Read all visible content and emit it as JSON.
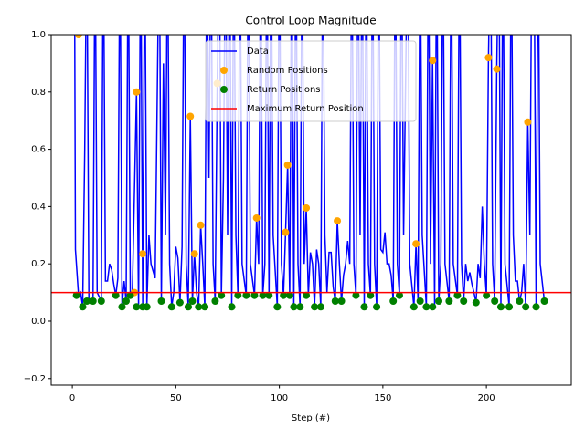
{
  "chart_data": {
    "type": "line",
    "title": "Control Loop Magnitude",
    "x_label": "Step (#)",
    "xlim": [
      -10.2,
      241
    ],
    "ylim": [
      -0.223,
      1.0
    ],
    "xticks": [
      0,
      50,
      100,
      150,
      200
    ],
    "yticks": [
      {
        "value": -0.2,
        "label": "−0.2"
      },
      {
        "value": 0,
        "label": "0.0"
      },
      0.2,
      0.4,
      0.6,
      0.8,
      {
        "value": 1.0,
        "label": "1.0"
      }
    ],
    "legend": "upper center",
    "series": [
      {
        "name": "Data",
        "type": "line",
        "color": "#0000ff",
        "x": [
          1,
          1.5,
          3,
          4,
          5,
          6,
          7,
          8,
          10,
          11,
          12,
          14,
          15,
          16,
          17,
          18,
          19,
          20,
          21,
          22,
          23,
          24,
          25,
          26,
          27,
          28,
          29,
          31,
          32,
          33,
          34,
          35,
          36,
          37,
          38,
          40,
          42,
          43,
          44,
          45,
          46,
          47,
          48,
          49,
          50,
          51,
          52,
          53,
          54,
          55,
          56,
          57,
          58,
          59,
          60,
          61,
          62,
          63,
          64,
          65,
          66,
          67,
          68,
          69,
          70,
          71,
          72,
          73,
          74,
          75,
          76,
          77,
          78,
          79,
          80,
          81,
          82,
          84,
          85,
          86,
          88,
          89,
          90,
          91,
          92,
          93,
          94,
          95,
          96,
          97,
          99,
          100,
          101,
          102,
          103,
          104,
          105,
          106,
          107,
          108,
          109,
          110,
          111,
          112,
          113,
          114,
          115,
          116,
          117,
          118,
          119,
          120,
          121,
          122,
          123,
          124,
          125,
          126,
          127,
          128,
          129,
          130,
          131,
          132,
          133,
          134,
          135,
          136,
          137,
          138,
          139,
          140,
          141,
          142,
          143,
          144,
          145,
          146,
          147,
          148,
          149,
          150,
          151,
          152,
          153,
          154,
          155,
          156,
          157,
          158,
          159,
          160,
          162,
          163,
          165,
          166,
          167,
          168,
          169,
          171,
          172,
          173,
          174,
          175,
          176,
          177,
          178,
          179,
          180,
          182,
          183,
          184,
          186,
          187,
          188,
          189,
          190,
          191,
          192,
          193,
          194,
          195,
          196,
          197,
          198,
          199,
          200,
          201,
          202,
          203,
          204,
          205,
          206,
          207,
          208,
          209,
          211,
          212,
          213,
          214,
          215,
          216,
          217,
          218,
          219,
          220,
          221,
          222,
          223,
          224,
          225,
          226,
          228
        ],
        "values": [
          1.4,
          0.25,
          0.09,
          0.1,
          0.05,
          0.6,
          1.4,
          0.07,
          0.07,
          1.4,
          0.1,
          0.07,
          1.4,
          0.14,
          0.14,
          0.2,
          0.18,
          0.13,
          0.09,
          0.15,
          1.4,
          0.05,
          0.14,
          0.07,
          1.4,
          0.09,
          0.1,
          0.8,
          0.05,
          1.4,
          0.05,
          1.4,
          0.05,
          0.3,
          0.2,
          0.15,
          1.4,
          0.07,
          0.9,
          0.3,
          1.4,
          0.2,
          0.05,
          0.1,
          0.26,
          0.22,
          0.065,
          0.26,
          1.4,
          0.2,
          0.05,
          0.715,
          0.07,
          0.235,
          0.1,
          0.05,
          0.335,
          0.2,
          0.05,
          1.4,
          0.5,
          1.4,
          0.2,
          0.07,
          0.83,
          1.4,
          0.09,
          0.5,
          1.4,
          0.3,
          1.4,
          0.05,
          1.4,
          0.3,
          0.09,
          1.4,
          0.2,
          0.09,
          1.4,
          0.2,
          0.09,
          0.36,
          0.2,
          1.4,
          0.09,
          0.2,
          1.4,
          0.09,
          1.4,
          0.3,
          0.05,
          1.4,
          0.2,
          0.09,
          0.31,
          0.545,
          0.09,
          1.4,
          0.05,
          1.4,
          0.2,
          0.05,
          1.4,
          0.2,
          0.395,
          0.09,
          0.24,
          0.2,
          0.05,
          0.25,
          0.2,
          0.05,
          1.4,
          0.3,
          0.1,
          0.24,
          0.24,
          0.12,
          0.07,
          0.35,
          0.2,
          0.07,
          0.16,
          0.2,
          0.28,
          0.2,
          1.4,
          0.2,
          0.09,
          1.4,
          0.3,
          1.4,
          0.05,
          1.4,
          0.2,
          0.09,
          1.4,
          0.2,
          0.05,
          1.4,
          0.25,
          0.24,
          0.31,
          0.2,
          0.2,
          0.16,
          0.07,
          1.4,
          0.2,
          0.09,
          1.4,
          0.3,
          1.4,
          0.2,
          0.05,
          0.27,
          0.07,
          1.4,
          0.3,
          0.05,
          1.4,
          0.2,
          0.91,
          0.05,
          1.4,
          0.07,
          0.2,
          1.4,
          0.2,
          0.07,
          1.4,
          0.2,
          0.09,
          1.4,
          0.2,
          0.07,
          0.2,
          0.14,
          0.17,
          0.13,
          0.1,
          0.065,
          0.2,
          0.15,
          0.4,
          0.2,
          0.09,
          0.92,
          1.4,
          0.2,
          0.07,
          0.88,
          1.4,
          0.05,
          1.4,
          0.2,
          0.05,
          1.4,
          0.3,
          0.14,
          0.14,
          0.07,
          0.1,
          0.2,
          0.05,
          0.695,
          0.3,
          1.4,
          1.4,
          0.05,
          1.4,
          0.2,
          0.07
        ]
      },
      {
        "name": "Random Positions",
        "type": "scatter",
        "color": "#ffa500",
        "x": [
          3,
          30,
          31,
          34,
          57,
          59,
          62,
          70,
          89,
          103,
          104,
          113,
          128,
          166,
          174,
          201,
          205,
          220
        ],
        "values": [
          1.0,
          0.1,
          0.8,
          0.235,
          0.715,
          0.235,
          0.335,
          0.83,
          0.36,
          0.31,
          0.545,
          0.395,
          0.35,
          0.27,
          0.91,
          0.92,
          0.88,
          0.695
        ]
      },
      {
        "name": "Return Positions",
        "type": "scatter",
        "color": "#008000",
        "x": [
          2,
          5,
          7,
          10,
          14,
          21,
          24,
          26,
          28,
          31,
          34,
          36,
          43,
          48,
          52,
          56,
          58,
          61,
          64,
          69,
          72,
          77,
          80,
          84,
          88,
          92,
          95,
          99,
          102,
          105,
          107,
          110,
          113,
          117,
          120,
          127,
          130,
          137,
          141,
          144,
          147,
          155,
          158,
          165,
          168,
          171,
          174,
          177,
          182,
          186,
          189,
          195,
          200,
          204,
          207,
          211,
          216,
          219,
          224,
          228
        ],
        "values": [
          0.09,
          0.05,
          0.07,
          0.07,
          0.07,
          0.09,
          0.05,
          0.07,
          0.09,
          0.05,
          0.05,
          0.05,
          0.07,
          0.05,
          0.065,
          0.05,
          0.07,
          0.05,
          0.05,
          0.07,
          0.09,
          0.05,
          0.09,
          0.09,
          0.09,
          0.09,
          0.09,
          0.05,
          0.09,
          0.09,
          0.05,
          0.05,
          0.09,
          0.05,
          0.05,
          0.07,
          0.07,
          0.09,
          0.05,
          0.09,
          0.05,
          0.07,
          0.09,
          0.05,
          0.07,
          0.05,
          0.05,
          0.07,
          0.07,
          0.09,
          0.07,
          0.065,
          0.09,
          0.07,
          0.05,
          0.05,
          0.07,
          0.05,
          0.05,
          0.07
        ]
      },
      {
        "name": "Maximum Return Position",
        "type": "hline",
        "color": "#ff0000",
        "y": 0.1
      }
    ]
  }
}
